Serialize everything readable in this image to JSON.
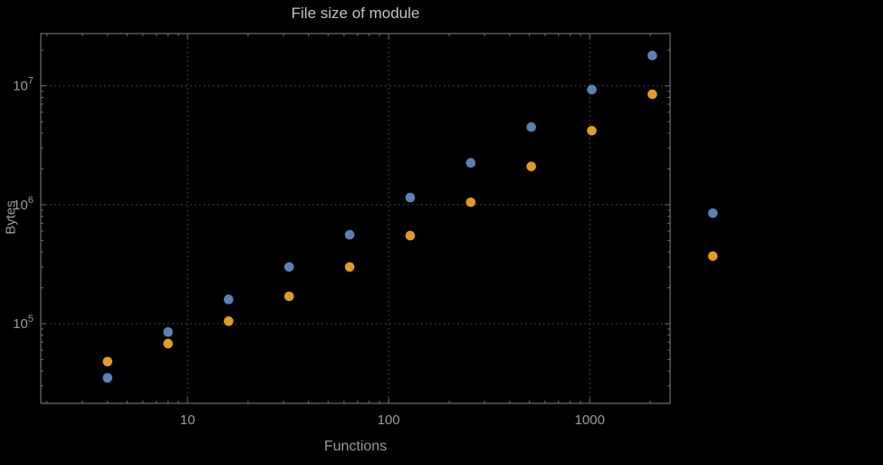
{
  "chart": {
    "title": "File size of module",
    "xlabel": "Functions",
    "ylabel": "Bytes"
  },
  "chart_data": {
    "type": "scatter",
    "title": "File size of module",
    "xlabel": "Functions",
    "ylabel": "Bytes",
    "x_scale": "log",
    "y_scale": "log",
    "grid": "dotted",
    "legend": "none",
    "x": [
      4,
      8,
      16,
      32,
      64,
      128,
      256,
      512,
      1024,
      2048,
      4096
    ],
    "series": [
      {
        "name": "blue",
        "color": "#5E81B5",
        "values": [
          35000,
          85000,
          160000,
          300000,
          560000,
          1150000,
          2250000,
          4500000,
          9300000,
          18000000,
          850000
        ]
      },
      {
        "name": "orange",
        "color": "#E19C24",
        "values": [
          48000,
          68000,
          105000,
          170000,
          300000,
          550000,
          1050000,
          2100000,
          4200000,
          8500000,
          370000
        ]
      }
    ],
    "x_ticks": [
      {
        "label": "10",
        "value": 10
      },
      {
        "label": "100",
        "value": 100
      },
      {
        "label": "1000",
        "value": 1000
      }
    ],
    "y_ticks": [
      {
        "base": "10",
        "exp": "5",
        "value": 100000
      },
      {
        "base": "10",
        "exp": "6",
        "value": 1000000
      },
      {
        "base": "10",
        "exp": "7",
        "value": 10000000
      }
    ],
    "x_range_log": [
      0.27,
      3.4
    ],
    "y_range_log": [
      4.33,
      7.44
    ],
    "colors": {
      "background": "#000000",
      "frame": "#6f6f6f",
      "grid": "#565656",
      "text": "#9a9a9a",
      "title": "#c2c2c2"
    }
  }
}
